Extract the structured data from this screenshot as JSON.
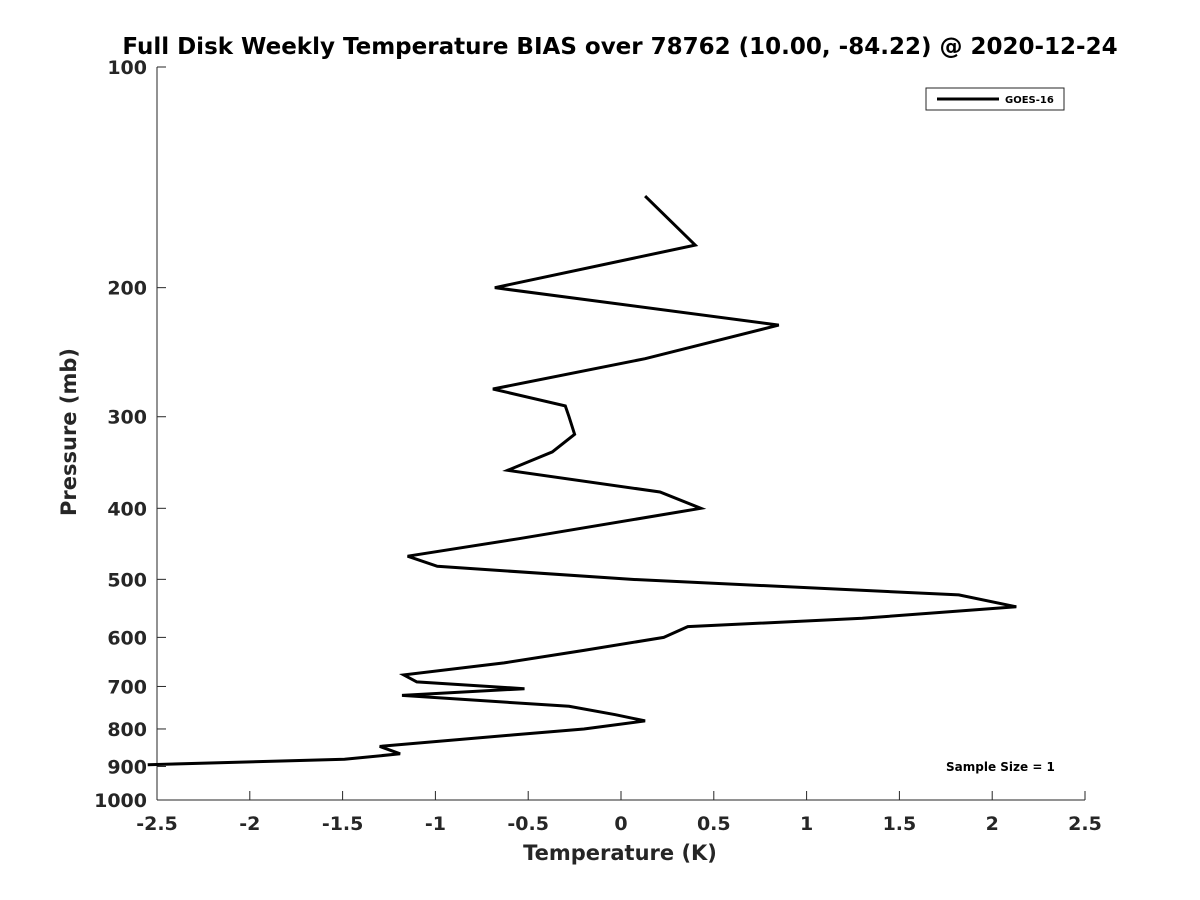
{
  "chart_data": {
    "type": "line",
    "title": "Full Disk Weekly Temperature BIAS over 78762 (10.00, -84.22) @ 2020-12-24",
    "xlabel": "Temperature (K)",
    "ylabel": "Pressure (mb)",
    "xlim": [
      -2.5,
      2.5
    ],
    "ylim": [
      1000,
      100
    ],
    "yscale": "log",
    "x_ticks": [
      -2.5,
      -2,
      -1.5,
      -1,
      -0.5,
      0,
      0.5,
      1,
      1.5,
      2,
      2.5
    ],
    "x_tick_labels": [
      "-2.5",
      "-2",
      "-1.5",
      "-1",
      "-0.5",
      "0",
      "0.5",
      "1",
      "1.5",
      "2",
      "2.5"
    ],
    "y_ticks": [
      100,
      200,
      300,
      400,
      500,
      600,
      700,
      800,
      900,
      1000
    ],
    "y_tick_labels": [
      "100",
      "200",
      "300",
      "400",
      "500",
      "600",
      "700",
      "800",
      "900",
      "1000"
    ],
    "grid": false,
    "legend_position": "top-right",
    "annotation": "Sample Size = 1",
    "series": [
      {
        "name": "GOES-16",
        "color": "#000000",
        "points": [
          [
            0.13,
            150
          ],
          [
            0.4,
            175
          ],
          [
            -0.68,
            200
          ],
          [
            0.85,
            225
          ],
          [
            0.13,
            250
          ],
          [
            -0.69,
            275
          ],
          [
            -0.3,
            290
          ],
          [
            -0.28,
            300
          ],
          [
            -0.25,
            317
          ],
          [
            -0.37,
            335
          ],
          [
            -0.61,
            355
          ],
          [
            0.21,
            380
          ],
          [
            0.43,
            400
          ],
          [
            -0.55,
            440
          ],
          [
            -1.15,
            465
          ],
          [
            -0.99,
            480
          ],
          [
            0.05,
            500
          ],
          [
            1.82,
            525
          ],
          [
            2.13,
            545
          ],
          [
            1.3,
            565
          ],
          [
            0.36,
            580
          ],
          [
            0.23,
            600
          ],
          [
            -0.2,
            625
          ],
          [
            -0.63,
            650
          ],
          [
            -1.17,
            675
          ],
          [
            -1.1,
            690
          ],
          [
            -0.52,
            705
          ],
          [
            -1.18,
            720
          ],
          [
            -0.28,
            745
          ],
          [
            -0.03,
            765
          ],
          [
            0.13,
            780
          ],
          [
            -0.2,
            800
          ],
          [
            -0.58,
            815
          ],
          [
            -1.3,
            845
          ],
          [
            -1.19,
            865
          ],
          [
            -1.49,
            880
          ],
          [
            -2.55,
            895
          ]
        ]
      }
    ]
  }
}
